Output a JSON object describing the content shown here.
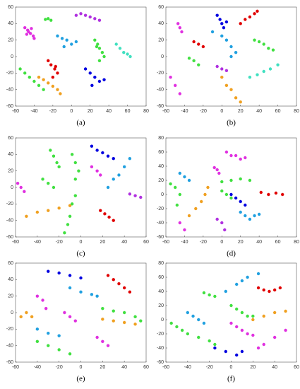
{
  "chart_data": [
    {
      "type": "scatter",
      "title": "(a)",
      "xlim": [
        -60,
        80
      ],
      "ylim": [
        -60,
        60
      ],
      "xticks": [
        -60,
        -40,
        -20,
        0,
        20,
        40,
        60,
        80
      ],
      "yticks": [
        -60,
        -40,
        -20,
        0,
        20,
        40,
        60
      ],
      "series": [
        {
          "color": "#e030e0",
          "x": [
            -50,
            -47,
            -44,
            -41,
            -46,
            -43,
            -48,
            -40
          ],
          "y": [
            35,
            32,
            28,
            25,
            30,
            34,
            27,
            22
          ]
        },
        {
          "color": "#40e040",
          "x": [
            -28,
            -25,
            -22
          ],
          "y": [
            45,
            46,
            44
          ]
        },
        {
          "color": "#b030e0",
          "x": [
            5,
            10,
            15,
            20,
            25,
            30
          ],
          "y": [
            50,
            52,
            50,
            48,
            46,
            44
          ]
        },
        {
          "color": "#20a0e0",
          "x": [
            -15,
            -10,
            -5,
            0,
            5,
            -8
          ],
          "y": [
            25,
            22,
            20,
            15,
            18,
            12
          ]
        },
        {
          "color": "#40e040",
          "x": [
            25,
            28,
            30,
            33,
            35,
            30,
            27
          ],
          "y": [
            20,
            15,
            10,
            5,
            0,
            -5,
            12
          ]
        },
        {
          "color": "#40e0c0",
          "x": [
            48,
            52,
            56,
            60,
            63
          ],
          "y": [
            15,
            10,
            5,
            3,
            0
          ]
        },
        {
          "color": "#e00000",
          "x": [
            -25,
            -22,
            -18,
            -15,
            -20,
            -17
          ],
          "y": [
            -5,
            -10,
            -15,
            -20,
            -25,
            -12
          ]
        },
        {
          "color": "#0000e0",
          "x": [
            15,
            20,
            25,
            30,
            35,
            22
          ],
          "y": [
            -15,
            -20,
            -25,
            -30,
            -28,
            -35
          ]
        },
        {
          "color": "#40e040",
          "x": [
            -55,
            -50,
            -45,
            -40,
            -35,
            -30
          ],
          "y": [
            -15,
            -20,
            -25,
            -30,
            -35,
            -40
          ]
        },
        {
          "color": "#f0a020",
          "x": [
            -35,
            -30,
            -25,
            -20,
            -15,
            -12
          ],
          "y": [
            -25,
            -28,
            -32,
            -36,
            -40,
            -45
          ]
        }
      ]
    },
    {
      "type": "scatter",
      "title": "(b)",
      "xlim": [
        -60,
        80
      ],
      "ylim": [
        -60,
        60
      ],
      "xticks": [
        -60,
        -40,
        -20,
        0,
        20,
        40,
        60,
        80
      ],
      "yticks": [
        -60,
        -40,
        -20,
        0,
        20,
        40,
        60
      ],
      "series": [
        {
          "color": "#0000e0",
          "x": [
            -5,
            -2,
            0,
            2,
            5
          ],
          "y": [
            50,
            45,
            40,
            35,
            42
          ]
        },
        {
          "color": "#e00000",
          "x": [
            20,
            25,
            30,
            35,
            38
          ],
          "y": [
            40,
            45,
            48,
            52,
            55
          ]
        },
        {
          "color": "#e030e0",
          "x": [
            -47,
            -45,
            -43
          ],
          "y": [
            40,
            35,
            30
          ]
        },
        {
          "color": "#e00000",
          "x": [
            -30,
            -25,
            -20
          ],
          "y": [
            18,
            15,
            12
          ]
        },
        {
          "color": "#20a0e0",
          "x": [
            -10,
            0,
            5,
            10,
            15,
            10
          ],
          "y": [
            30,
            25,
            20,
            12,
            5,
            0
          ]
        },
        {
          "color": "#40e040",
          "x": [
            35,
            40,
            45,
            50,
            55
          ],
          "y": [
            20,
            18,
            15,
            10,
            8
          ]
        },
        {
          "color": "#40e040",
          "x": [
            -35,
            -30,
            -25
          ],
          "y": [
            -2,
            -5,
            -10
          ]
        },
        {
          "color": "#e030e0",
          "x": [
            -55,
            -50,
            -45
          ],
          "y": [
            -25,
            -35,
            -45
          ]
        },
        {
          "color": "#b030e0",
          "x": [
            -5,
            0,
            5
          ],
          "y": [
            -12,
            -15,
            -17
          ]
        },
        {
          "color": "#40e0c0",
          "x": [
            30,
            38,
            45,
            52,
            60
          ],
          "y": [
            -25,
            -22,
            -18,
            -15,
            -10
          ]
        },
        {
          "color": "#f0a020",
          "x": [
            0,
            5,
            10,
            15,
            20
          ],
          "y": [
            -25,
            -35,
            -40,
            -50,
            -55
          ]
        }
      ]
    },
    {
      "type": "scatter",
      "title": "(c)",
      "xlim": [
        -60,
        60
      ],
      "ylim": [
        -60,
        60
      ],
      "xticks": [
        -60,
        -40,
        -20,
        0,
        20,
        40,
        60
      ],
      "yticks": [
        -60,
        -40,
        -20,
        0,
        20,
        40,
        60
      ],
      "series": [
        {
          "color": "#0000e0",
          "x": [
            10,
            15,
            20,
            25,
            30
          ],
          "y": [
            50,
            45,
            42,
            38,
            35
          ]
        },
        {
          "color": "#40e040",
          "x": [
            -28,
            -25,
            -22,
            -20
          ],
          "y": [
            45,
            38,
            30,
            25
          ]
        },
        {
          "color": "#40e040",
          "x": [
            -8,
            -5,
            -2,
            -5
          ],
          "y": [
            40,
            30,
            20,
            10
          ]
        },
        {
          "color": "#20a0e0",
          "x": [
            25,
            30,
            35,
            40,
            45
          ],
          "y": [
            0,
            10,
            15,
            25,
            35
          ]
        },
        {
          "color": "#e030e0",
          "x": [
            10,
            15,
            18
          ],
          "y": [
            25,
            20,
            15
          ]
        },
        {
          "color": "#e030e0",
          "x": [
            -58,
            -55,
            -52
          ],
          "y": [
            5,
            0,
            -5
          ]
        },
        {
          "color": "#40e040",
          "x": [
            -35,
            -30,
            -25
          ],
          "y": [
            10,
            5,
            0
          ]
        },
        {
          "color": "#b030e0",
          "x": [
            45,
            50,
            55
          ],
          "y": [
            -8,
            -10,
            -12
          ]
        },
        {
          "color": "#f0a020",
          "x": [
            -50,
            -40,
            -30,
            -20,
            -10
          ],
          "y": [
            -35,
            -30,
            -28,
            -25,
            -22
          ]
        },
        {
          "color": "#40e040",
          "x": [
            -5,
            -8,
            -10,
            -12,
            -15
          ],
          "y": [
            -10,
            -20,
            -35,
            -45,
            -55
          ]
        },
        {
          "color": "#e00000",
          "x": [
            18,
            22,
            26,
            30
          ],
          "y": [
            -28,
            -32,
            -36,
            -40
          ]
        }
      ]
    },
    {
      "type": "scatter",
      "title": "(d)",
      "xlim": [
        -60,
        80
      ],
      "ylim": [
        -60,
        80
      ],
      "xticks": [
        -60,
        -40,
        -20,
        0,
        20,
        40,
        60,
        80
      ],
      "yticks": [
        -60,
        -40,
        -20,
        0,
        20,
        40,
        60,
        80
      ],
      "series": [
        {
          "color": "#e030e0",
          "x": [
            5,
            10,
            15,
            20,
            25
          ],
          "y": [
            60,
            55,
            55,
            50,
            52
          ]
        },
        {
          "color": "#e030e0",
          "x": [
            -8,
            -5,
            -3
          ],
          "y": [
            38,
            35,
            30
          ]
        },
        {
          "color": "#20a0e0",
          "x": [
            -45,
            -40,
            -35
          ],
          "y": [
            30,
            25,
            20
          ]
        },
        {
          "color": "#40e040",
          "x": [
            -55,
            -50,
            -45,
            -48
          ],
          "y": [
            15,
            10,
            0,
            -15
          ]
        },
        {
          "color": "#40e040",
          "x": [
            0,
            10,
            20,
            30
          ],
          "y": [
            18,
            20,
            22,
            20
          ]
        },
        {
          "color": "#f0a020",
          "x": [
            -15,
            -18,
            -22,
            -28,
            -35
          ],
          "y": [
            10,
            0,
            -10,
            -20,
            -30
          ]
        },
        {
          "color": "#40e040",
          "x": [
            0,
            5,
            10
          ],
          "y": [
            5,
            0,
            -5
          ]
        },
        {
          "color": "#0000e0",
          "x": [
            10,
            15,
            20,
            25
          ],
          "y": [
            0,
            -5,
            -10,
            -15
          ]
        },
        {
          "color": "#e00000",
          "x": [
            42,
            50,
            58,
            65
          ],
          "y": [
            3,
            0,
            2,
            0
          ]
        },
        {
          "color": "#20a0e0",
          "x": [
            20,
            25,
            30,
            35,
            40
          ],
          "y": [
            -25,
            -30,
            -35,
            -30,
            -28
          ]
        },
        {
          "color": "#b030e0",
          "x": [
            -5,
            0,
            3
          ],
          "y": [
            -35,
            -40,
            -50
          ]
        },
        {
          "color": "#e030e0",
          "x": [
            -45,
            -40
          ],
          "y": [
            -40,
            -50
          ]
        }
      ]
    },
    {
      "type": "scatter",
      "title": "(e)",
      "xlim": [
        -60,
        60
      ],
      "ylim": [
        -60,
        60
      ],
      "xticks": [
        -60,
        -40,
        -20,
        0,
        20,
        40,
        60
      ],
      "yticks": [
        -60,
        -40,
        -20,
        0,
        20,
        40,
        60
      ],
      "series": [
        {
          "color": "#0000e0",
          "x": [
            -30,
            -20,
            -10,
            0
          ],
          "y": [
            50,
            48,
            45,
            42
          ]
        },
        {
          "color": "#e00000",
          "x": [
            25,
            30,
            35,
            40,
            45
          ],
          "y": [
            45,
            40,
            35,
            30,
            25
          ]
        },
        {
          "color": "#20a0e0",
          "x": [
            -10,
            0,
            10,
            15
          ],
          "y": [
            30,
            25,
            22,
            20
          ]
        },
        {
          "color": "#e030e0",
          "x": [
            -40,
            -35,
            -32
          ],
          "y": [
            20,
            15,
            5
          ]
        },
        {
          "color": "#f0a020",
          "x": [
            -55,
            -50,
            -45
          ],
          "y": [
            -5,
            0,
            -5
          ]
        },
        {
          "color": "#e030e0",
          "x": [
            -15,
            -10,
            -5
          ],
          "y": [
            0,
            -5,
            -10
          ]
        },
        {
          "color": "#40e040",
          "x": [
            20,
            30,
            40,
            50,
            55
          ],
          "y": [
            5,
            2,
            0,
            -5,
            -10
          ]
        },
        {
          "color": "#f0a020",
          "x": [
            20,
            30,
            40,
            50
          ],
          "y": [
            -8,
            -10,
            -12,
            -14
          ]
        },
        {
          "color": "#20a0e0",
          "x": [
            -40,
            -30,
            -20
          ],
          "y": [
            -20,
            -25,
            -28
          ]
        },
        {
          "color": "#40e040",
          "x": [
            -40,
            -30,
            -20,
            -10
          ],
          "y": [
            -35,
            -40,
            -45,
            -50
          ]
        },
        {
          "color": "#e030e0",
          "x": [
            15,
            20,
            25
          ],
          "y": [
            -30,
            -35,
            -40
          ]
        }
      ]
    },
    {
      "type": "scatter",
      "title": "(f)",
      "xlim": [
        -60,
        60
      ],
      "ylim": [
        -60,
        80
      ],
      "xticks": [
        -60,
        -40,
        -20,
        0,
        20,
        40,
        60
      ],
      "yticks": [
        -60,
        -40,
        -20,
        0,
        20,
        40,
        60,
        80
      ],
      "series": [
        {
          "color": "#20a0e0",
          "x": [
            -5,
            5,
            10,
            15,
            25
          ],
          "y": [
            40,
            50,
            55,
            60,
            65
          ]
        },
        {
          "color": "#e00000",
          "x": [
            25,
            30,
            35,
            40,
            45
          ],
          "y": [
            45,
            42,
            40,
            42,
            45
          ]
        },
        {
          "color": "#40e040",
          "x": [
            -25,
            -20,
            -15
          ],
          "y": [
            38,
            35,
            33
          ]
        },
        {
          "color": "#40e040",
          "x": [
            0,
            5,
            10,
            15,
            20
          ],
          "y": [
            20,
            15,
            10,
            5,
            5
          ]
        },
        {
          "color": "#f0a020",
          "x": [
            20,
            30,
            40,
            50
          ],
          "y": [
            0,
            5,
            10,
            12
          ]
        },
        {
          "color": "#20a0e0",
          "x": [
            -40,
            -35,
            -30,
            -25
          ],
          "y": [
            10,
            5,
            0,
            -5
          ]
        },
        {
          "color": "#40e040",
          "x": [
            -55,
            -50,
            -45,
            -40
          ],
          "y": [
            -5,
            -10,
            -15,
            -20
          ]
        },
        {
          "color": "#e030e0",
          "x": [
            0,
            5,
            10,
            15,
            20
          ],
          "y": [
            -5,
            -10,
            -15,
            -20,
            -22
          ]
        },
        {
          "color": "#e030e0",
          "x": [
            25,
            30,
            40,
            50
          ],
          "y": [
            -40,
            -35,
            -25,
            -15
          ]
        },
        {
          "color": "#40e040",
          "x": [
            -30,
            -20,
            -15
          ],
          "y": [
            -25,
            -30,
            -35
          ]
        },
        {
          "color": "#0000e0",
          "x": [
            -15,
            -5,
            5,
            10
          ],
          "y": [
            -40,
            -45,
            -50,
            -45
          ]
        }
      ]
    }
  ]
}
